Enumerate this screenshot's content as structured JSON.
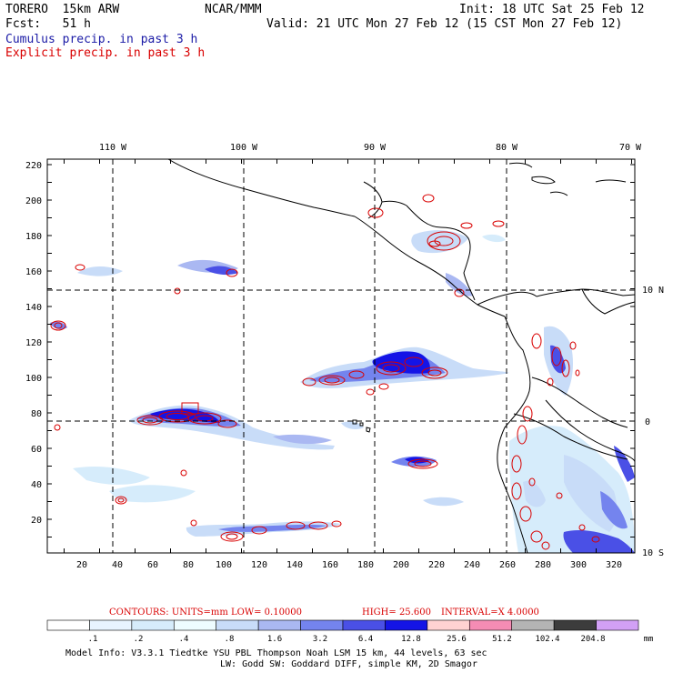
{
  "header": {
    "model": "TORERO  15km ARW",
    "org": "NCAR/MMM",
    "init": "Init: 18 UTC Sat 25 Feb 12",
    "fcst": "Fcst:   51 h",
    "valid": "Valid: 21 UTC Mon 27 Feb 12 (15 CST Mon 27 Feb 12)",
    "legend_cumulus": "Cumulus precip. in past 3 h",
    "legend_explicit": "Explicit precip. in past 3 h"
  },
  "colors": {
    "cumulus_title": "#1a1aa6",
    "explicit_title": "#d90000",
    "contour": "#d90000",
    "coast": "#000000"
  },
  "map": {
    "lon_labels": [
      "110 W",
      "100 W",
      "90 W",
      "80 W",
      "70 W"
    ],
    "lat_labels": [
      "10 N",
      "0",
      "10 S"
    ],
    "y_ticks": [
      "220",
      "200",
      "180",
      "160",
      "140",
      "120",
      "100",
      "80",
      "60",
      "40",
      "20"
    ],
    "x_ticks": [
      "20",
      "40",
      "60",
      "80",
      "100",
      "120",
      "140",
      "160",
      "180",
      "200",
      "220",
      "240",
      "260",
      "280",
      "300",
      "320"
    ]
  },
  "contours_info": {
    "units": "CONTOURS:  UNITS=mm  LOW= 0.10000",
    "high": "HIGH=  25.600",
    "interval": "INTERVAL=X  4.0000"
  },
  "colorbar": {
    "labels": [
      ".1",
      ".2",
      ".4",
      ".8",
      "1.6",
      "3.2",
      "6.4",
      "12.8",
      "25.6",
      "51.2",
      "102.4",
      "204.8"
    ],
    "unit": "mm",
    "colors": [
      "#ffffff",
      "#e8f4ff",
      "#d6ecfb",
      "#eefcff",
      "#c8dcf8",
      "#aab8f2",
      "#7484ee",
      "#4a50e6",
      "#1414e6",
      "#ffd2d2",
      "#f58cb4",
      "#b4b4b4",
      "#3c3c3c",
      "#d2a0f5"
    ]
  },
  "footer": {
    "line1": "Model Info: V3.3.1    Tiedtke YSU PBL  Thompson    Noah LSM  15 km,   44 levels,   63 sec",
    "line2": "LW: Godd SW: Goddard DIFF, simple KM, 2D Smagor"
  }
}
